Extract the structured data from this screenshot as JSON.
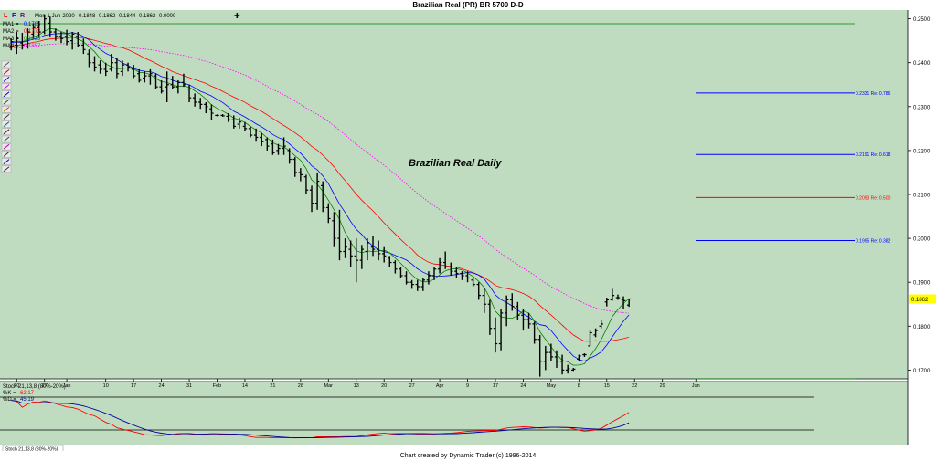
{
  "window": {
    "title": "Brazilian Real (PR) BR 5700 D-D",
    "footer": "Chart created by Dynamic Trader  (c) 1996-2014"
  },
  "toolbar": {
    "letters": [
      "L",
      "F",
      "R"
    ],
    "date": "Mon 1-Jun-2020",
    "open": "0.1848",
    "high": "0.1862",
    "low": "0.1844",
    "close": "0.1862",
    "change": "0.0000",
    "crosshair_icon": "crosshair-icon"
  },
  "tools": [
    "cursor-tool-icon",
    "cross-tool-icon",
    "trendline-tool-icon",
    "parallel-lines-tool-icon",
    "channel-tool-icon",
    "fib-retracement-tool-icon",
    "fib-extension-tool-icon",
    "ratio-tool-icon",
    "time-ratio-tool-icon",
    "cycle-tool-icon",
    "pattern-tool-icon",
    "grid-tool-icon",
    "text-tool-icon",
    "projection-tool-icon",
    "settings-tool-icon"
  ],
  "colors": {
    "background": "#c0dcc0",
    "ma1": "#0000ff",
    "ma2": "#ff0000",
    "ma3": "#008000",
    "ma4": "#ff00ff",
    "price_marker": "#ffff00",
    "stoch_k": "#ff0000",
    "stoch_d": "#0000a0"
  },
  "legend": {
    "ma": [
      {
        "label": "MA1 = ",
        "value": "0.1785",
        "color": "#0000ff"
      },
      {
        "label": "MA2 = ",
        "value": "0.1772",
        "color": "#ff0000"
      },
      {
        "label": "MA3 = ",
        "value": "0.1833",
        "color": "#008000"
      },
      {
        "label": "MA4 = ",
        "value": "0.1857",
        "color": "#ff00ff"
      }
    ],
    "stoch": [
      {
        "label": "Stoch 21,13,8 (80%-20%)",
        "value": "",
        "color": "#000000"
      },
      {
        "label": "%K = ",
        "value": "62.17",
        "color": "#ff0000"
      },
      {
        "label": "%D = ",
        "value": "45.19",
        "color": "#0000a0"
      }
    ],
    "stoch_tab": "Stoch 21,13,8 (80%-20%)"
  },
  "annotations": {
    "chart_label": "Brazilian Real Daily",
    "price_tag": "0.1862",
    "retracements": [
      {
        "price": 0.2331,
        "label": "0.2331 Ret 0.786",
        "x1": 114,
        "x2": 143
      },
      {
        "price": 0.2191,
        "label": "0.2191 Ret 0.618",
        "x1": 114,
        "x2": 143
      },
      {
        "price": 0.2093,
        "label": "0.2093 Ret 0.500",
        "x1": 114,
        "x2": 143
      },
      {
        "price": 0.1995,
        "label": "0.1995 Ret 0.382",
        "x1": 114,
        "x2": 143
      }
    ]
  },
  "chart_data": {
    "type": "ohlc",
    "title": "Brazilian Real (PR) BR 5700 D-D",
    "y_range": [
      0.168,
      0.252
    ],
    "y_ticks": [
      "0.2500",
      "0.2400",
      "0.2300",
      "0.2200",
      "0.2100",
      "0.2000",
      "0.1900",
      "0.1800",
      "0.1700"
    ],
    "y_tick_values": [
      0.25,
      0.24,
      0.23,
      0.22,
      0.21,
      0.2,
      0.19,
      0.18,
      0.17
    ],
    "x_range": [
      -2,
      150
    ],
    "x_ticks": [
      {
        "i": 1,
        "label": "20"
      },
      {
        "i": 6,
        "label": "27"
      },
      {
        "i": 10,
        "label": "Jan"
      },
      {
        "i": 17,
        "label": "10"
      },
      {
        "i": 22,
        "label": "17"
      },
      {
        "i": 27,
        "label": "24"
      },
      {
        "i": 32,
        "label": "31"
      },
      {
        "i": 37,
        "label": "Feb"
      },
      {
        "i": 42,
        "label": "14"
      },
      {
        "i": 47,
        "label": "21"
      },
      {
        "i": 52,
        "label": "28"
      },
      {
        "i": 57,
        "label": "Mar"
      },
      {
        "i": 62,
        "label": "13"
      },
      {
        "i": 67,
        "label": "20"
      },
      {
        "i": 72,
        "label": "27"
      },
      {
        "i": 77,
        "label": "Apr"
      },
      {
        "i": 82,
        "label": "9"
      },
      {
        "i": 87,
        "label": "17"
      },
      {
        "i": 92,
        "label": "24"
      },
      {
        "i": 97,
        "label": "May"
      },
      {
        "i": 102,
        "label": "8"
      },
      {
        "i": 107,
        "label": "15"
      },
      {
        "i": 112,
        "label": "22"
      },
      {
        "i": 117,
        "label": "29"
      },
      {
        "i": 123,
        "label": "Jun"
      }
    ],
    "bars": [
      [
        0.2435,
        0.2455,
        0.2428,
        0.2448
      ],
      [
        0.244,
        0.247,
        0.242,
        0.2455
      ],
      [
        0.2445,
        0.2468,
        0.243,
        0.244
      ],
      [
        0.2438,
        0.2478,
        0.2432,
        0.247
      ],
      [
        0.2465,
        0.249,
        0.2455,
        0.248
      ],
      [
        0.248,
        0.2495,
        0.246,
        0.247
      ],
      [
        0.247,
        0.251,
        0.2465,
        0.25
      ],
      [
        0.249,
        0.2505,
        0.246,
        0.247
      ],
      [
        0.247,
        0.2478,
        0.245,
        0.246
      ],
      [
        0.246,
        0.247,
        0.2445,
        0.2455
      ],
      [
        0.246,
        0.2475,
        0.244,
        0.2448
      ],
      [
        0.245,
        0.247,
        0.243,
        0.2465
      ],
      [
        0.246,
        0.247,
        0.2435,
        0.244
      ],
      [
        0.244,
        0.2455,
        0.242,
        0.243
      ],
      [
        0.242,
        0.243,
        0.239,
        0.24
      ],
      [
        0.24,
        0.2415,
        0.238,
        0.239
      ],
      [
        0.2395,
        0.2405,
        0.2375,
        0.2385
      ],
      [
        0.2385,
        0.24,
        0.237,
        0.238
      ],
      [
        0.2385,
        0.242,
        0.238,
        0.24
      ],
      [
        0.24,
        0.241,
        0.2365,
        0.2375
      ],
      [
        0.238,
        0.2405,
        0.237,
        0.2395
      ],
      [
        0.2395,
        0.24,
        0.238,
        0.239
      ],
      [
        0.2385,
        0.2395,
        0.2365,
        0.237
      ],
      [
        0.2375,
        0.2385,
        0.2355,
        0.236
      ],
      [
        0.2365,
        0.238,
        0.2355,
        0.237
      ],
      [
        0.237,
        0.2385,
        0.235,
        0.2375
      ],
      [
        0.237,
        0.2375,
        0.234,
        0.2345
      ],
      [
        0.2345,
        0.236,
        0.233,
        0.2335
      ],
      [
        0.2345,
        0.238,
        0.231,
        0.235
      ],
      [
        0.235,
        0.237,
        0.234,
        0.2345
      ],
      [
        0.2345,
        0.236,
        0.233,
        0.2355
      ],
      [
        0.2355,
        0.2375,
        0.2345,
        0.235
      ],
      [
        0.234,
        0.235,
        0.231,
        0.232
      ],
      [
        0.232,
        0.233,
        0.23,
        0.231
      ],
      [
        0.231,
        0.232,
        0.2295,
        0.2305
      ],
      [
        0.2305,
        0.231,
        0.2285,
        0.23
      ],
      [
        0.2295,
        0.2305,
        0.227,
        0.2285
      ],
      [
        0.228,
        0.2282,
        0.2278,
        0.228
      ],
      [
        0.228,
        0.2283,
        0.2277,
        0.2279
      ],
      [
        0.2278,
        0.2285,
        0.2265,
        0.227
      ],
      [
        0.227,
        0.228,
        0.225,
        0.2255
      ],
      [
        0.226,
        0.2275,
        0.225,
        0.2265
      ],
      [
        0.2255,
        0.2265,
        0.2245,
        0.225
      ],
      [
        0.225,
        0.2255,
        0.223,
        0.2235
      ],
      [
        0.2235,
        0.225,
        0.222,
        0.223
      ],
      [
        0.223,
        0.224,
        0.221,
        0.222
      ],
      [
        0.2225,
        0.223,
        0.22,
        0.221
      ],
      [
        0.2215,
        0.2225,
        0.219,
        0.2195
      ],
      [
        0.22,
        0.2215,
        0.219,
        0.2205
      ],
      [
        0.2205,
        0.223,
        0.219,
        0.221
      ],
      [
        0.22,
        0.2205,
        0.217,
        0.218
      ],
      [
        0.218,
        0.2185,
        0.214,
        0.215
      ],
      [
        0.215,
        0.216,
        0.213,
        0.2145
      ],
      [
        0.214,
        0.2145,
        0.21,
        0.211
      ],
      [
        0.211,
        0.212,
        0.206,
        0.208
      ],
      [
        0.208,
        0.215,
        0.2065,
        0.213
      ],
      [
        0.212,
        0.213,
        0.206,
        0.207
      ],
      [
        0.207,
        0.208,
        0.2035,
        0.2045
      ],
      [
        0.204,
        0.206,
        0.198,
        0.2
      ],
      [
        0.2,
        0.2065,
        0.195,
        0.197
      ],
      [
        0.197,
        0.2,
        0.1955,
        0.198
      ],
      [
        0.1975,
        0.1995,
        0.1935,
        0.196
      ],
      [
        0.196,
        0.2,
        0.19,
        0.195
      ],
      [
        0.195,
        0.1985,
        0.193,
        0.1975
      ],
      [
        0.197,
        0.2,
        0.195,
        0.199
      ],
      [
        0.198,
        0.2005,
        0.196,
        0.1975
      ],
      [
        0.1975,
        0.1995,
        0.195,
        0.1965
      ],
      [
        0.1965,
        0.198,
        0.1945,
        0.196
      ],
      [
        0.1955,
        0.196,
        0.1935,
        0.1945
      ],
      [
        0.1945,
        0.195,
        0.192,
        0.193
      ],
      [
        0.193,
        0.1935,
        0.191,
        0.1915
      ],
      [
        0.1915,
        0.1925,
        0.1895,
        0.19
      ],
      [
        0.19,
        0.1905,
        0.1885,
        0.1895
      ],
      [
        0.1895,
        0.1905,
        0.188,
        0.189
      ],
      [
        0.189,
        0.191,
        0.188,
        0.1905
      ],
      [
        0.1905,
        0.1925,
        0.1895,
        0.1915
      ],
      [
        0.1915,
        0.1935,
        0.1905,
        0.193
      ],
      [
        0.193,
        0.1955,
        0.192,
        0.1945
      ],
      [
        0.1945,
        0.197,
        0.193,
        0.1935
      ],
      [
        0.1935,
        0.1945,
        0.1915,
        0.1925
      ],
      [
        0.1925,
        0.1935,
        0.191,
        0.192
      ],
      [
        0.192,
        0.1925,
        0.1905,
        0.1915
      ],
      [
        0.1915,
        0.1925,
        0.19,
        0.191
      ],
      [
        0.1905,
        0.191,
        0.189,
        0.1895
      ],
      [
        0.1895,
        0.19,
        0.186,
        0.187
      ],
      [
        0.187,
        0.1885,
        0.183,
        0.185
      ],
      [
        0.185,
        0.186,
        0.178,
        0.1795
      ],
      [
        0.1795,
        0.182,
        0.174,
        0.176
      ],
      [
        0.176,
        0.184,
        0.1745,
        0.183
      ],
      [
        0.183,
        0.187,
        0.18,
        0.186
      ],
      [
        0.186,
        0.1875,
        0.1835,
        0.1845
      ],
      [
        0.1845,
        0.1855,
        0.1815,
        0.1825
      ],
      [
        0.1825,
        0.184,
        0.179,
        0.1815
      ],
      [
        0.1815,
        0.183,
        0.1795,
        0.1805
      ],
      [
        0.1805,
        0.181,
        0.176,
        0.177
      ],
      [
        0.177,
        0.178,
        0.1685,
        0.172
      ],
      [
        0.172,
        0.1755,
        0.17,
        0.174
      ],
      [
        0.174,
        0.176,
        0.172,
        0.173
      ],
      [
        0.173,
        0.1745,
        0.1705,
        0.172
      ],
      [
        0.172,
        0.1735,
        0.169,
        0.17
      ],
      [
        0.17,
        0.1712,
        0.1692,
        0.1703
      ],
      [
        0.17,
        0.1705,
        0.1698,
        0.1702
      ],
      [
        0.1725,
        0.1735,
        0.172,
        0.1732
      ],
      [
        0.1735,
        0.1738,
        0.173,
        0.1735
      ],
      [
        0.1755,
        0.179,
        0.1755,
        0.1785
      ],
      [
        0.178,
        0.1795,
        0.1775,
        0.179
      ],
      [
        0.18,
        0.1815,
        0.1795,
        0.1805
      ],
      [
        0.1855,
        0.1865,
        0.1845,
        0.186
      ],
      [
        0.186,
        0.1885,
        0.1858,
        0.187
      ],
      [
        0.1865,
        0.1872,
        0.186,
        0.1865
      ],
      [
        0.186,
        0.1868,
        0.184,
        0.1858
      ],
      [
        0.1848,
        0.1862,
        0.1844,
        0.1862
      ]
    ]
  }
}
